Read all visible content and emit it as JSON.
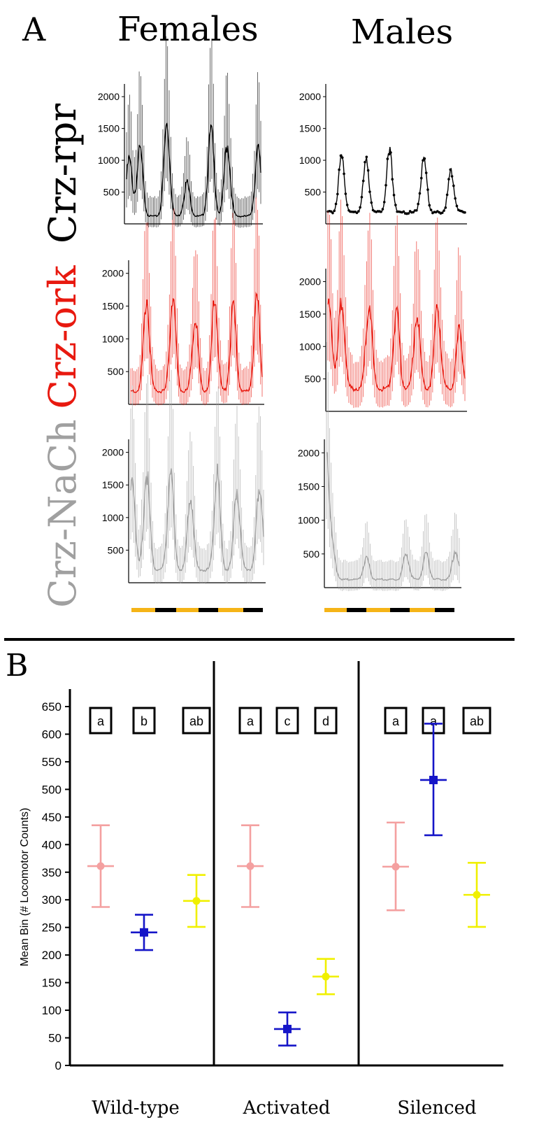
{
  "panel_a": {
    "label": "A",
    "columns": [
      "Females",
      "Males"
    ],
    "rows": [
      {
        "label": "Crz-rpr",
        "color": "#000000"
      },
      {
        "label": "Crz-ork",
        "color": "#e8190f"
      },
      {
        "label": "Crz-NaCh",
        "color": "#a0a0a0"
      }
    ]
  },
  "panel_b": {
    "label": "B"
  },
  "chart_data": [
    {
      "type": "line",
      "panel": "A",
      "row": "Crz-rpr",
      "column": "Females",
      "color": "#000000",
      "error_bars": true,
      "y_ticks": [
        "2000",
        "1500",
        "1000",
        "500"
      ],
      "ylim": [
        0,
        2200
      ],
      "peaks": [
        {
          "day_position": 0.02,
          "height": 1000
        },
        {
          "day_position": 0.1,
          "height": 1150
        },
        {
          "day_position": 0.3,
          "height": 1550
        },
        {
          "day_position": 0.45,
          "height": 650
        },
        {
          "day_position": 0.63,
          "height": 1450
        },
        {
          "day_position": 0.75,
          "height": 1250
        },
        {
          "day_position": 0.98,
          "height": 1150
        }
      ],
      "baseline": 120
    },
    {
      "type": "line",
      "panel": "A",
      "row": "Crz-rpr",
      "column": "Males",
      "color": "#000000",
      "error_bars": false,
      "y_ticks": [
        "2000",
        "1500",
        "1000",
        "500"
      ],
      "ylim": [
        0,
        2200
      ],
      "peaks": [
        {
          "day_position": 0.1,
          "height": 1000
        },
        {
          "day_position": 0.28,
          "height": 950
        },
        {
          "day_position": 0.45,
          "height": 1100
        },
        {
          "day_position": 0.7,
          "height": 950
        },
        {
          "day_position": 0.9,
          "height": 800
        }
      ],
      "baseline": 180
    },
    {
      "type": "line",
      "panel": "A",
      "row": "Crz-ork",
      "column": "Females",
      "color": "#e8190f",
      "error_bars": true,
      "y_ticks": [
        "2000",
        "1500",
        "1000",
        "500"
      ],
      "ylim": [
        0,
        2200
      ],
      "peaks": [
        {
          "day_position": 0.12,
          "height": 1650
        },
        {
          "day_position": 0.32,
          "height": 1650
        },
        {
          "day_position": 0.49,
          "height": 1350
        },
        {
          "day_position": 0.64,
          "height": 1600
        },
        {
          "day_position": 0.78,
          "height": 1450
        },
        {
          "day_position": 0.96,
          "height": 1600
        }
      ],
      "baseline": 200
    },
    {
      "type": "line",
      "panel": "A",
      "row": "Crz-ork",
      "column": "Males",
      "color": "#e8190f",
      "error_bars": true,
      "y_ticks": [
        "2000",
        "1500",
        "1000",
        "500"
      ],
      "ylim": [
        0,
        2200
      ],
      "peaks": [
        {
          "day_position": 0.01,
          "height": 1650
        },
        {
          "day_position": 0.1,
          "height": 1700
        },
        {
          "day_position": 0.3,
          "height": 1700
        },
        {
          "day_position": 0.5,
          "height": 1550
        },
        {
          "day_position": 0.65,
          "height": 1550
        },
        {
          "day_position": 0.8,
          "height": 1600
        },
        {
          "day_position": 0.96,
          "height": 1250
        }
      ],
      "baseline": 350
    },
    {
      "type": "line",
      "panel": "A",
      "row": "Crz-NaCh",
      "column": "Females",
      "color": "#a0a0a0",
      "error_bars": true,
      "y_ticks": [
        "2000",
        "1500",
        "1000",
        "500"
      ],
      "ylim": [
        0,
        2200
      ],
      "peaks": [
        {
          "day_position": 0.01,
          "height": 1650
        },
        {
          "day_position": 0.12,
          "height": 1700
        },
        {
          "day_position": 0.3,
          "height": 1750
        },
        {
          "day_position": 0.45,
          "height": 1350
        },
        {
          "day_position": 0.65,
          "height": 1700
        },
        {
          "day_position": 0.8,
          "height": 1450
        },
        {
          "day_position": 0.97,
          "height": 1550
        }
      ],
      "baseline": 200
    },
    {
      "type": "line",
      "panel": "A",
      "row": "Crz-NaCh",
      "column": "Males",
      "color": "#a0a0a0",
      "error_bars": true,
      "y_ticks": [
        "2000",
        "1500",
        "1000",
        "500"
      ],
      "ylim": [
        0,
        2200
      ],
      "peaks": [
        {
          "day_position": 0.0,
          "height": 2100
        },
        {
          "day_position": 0.05,
          "height": 450
        },
        {
          "day_position": 0.3,
          "height": 450
        },
        {
          "day_position": 0.6,
          "height": 500
        },
        {
          "day_position": 0.75,
          "height": 500
        },
        {
          "day_position": 0.97,
          "height": 550
        }
      ],
      "baseline": 120
    },
    {
      "type": "scatter",
      "panel": "B",
      "ylabel": "Mean Bin (# Locomotor Counts)",
      "ylim": [
        0,
        650
      ],
      "y_ticks": [
        "0",
        "50",
        "100",
        "150",
        "200",
        "250",
        "300",
        "350",
        "400",
        "450",
        "500",
        "550",
        "600",
        "650"
      ],
      "groups": [
        {
          "label": "Wild-type",
          "points": [
            {
              "mean": 361,
              "lower": 287,
              "upper": 435,
              "color": "#f4a0a0",
              "marker": "circle",
              "letter": "a"
            },
            {
              "mean": 241,
              "lower": 209,
              "upper": 273,
              "color": "#1515c8",
              "marker": "square",
              "letter": "b"
            },
            {
              "mean": 298,
              "lower": 251,
              "upper": 345,
              "color": "#f0f000",
              "marker": "circle",
              "letter": "ab"
            }
          ]
        },
        {
          "label": "Activated",
          "points": [
            {
              "mean": 361,
              "lower": 287,
              "upper": 435,
              "color": "#f4a0a0",
              "marker": "circle",
              "letter": "a"
            },
            {
              "mean": 66,
              "lower": 36,
              "upper": 96,
              "color": "#1515c8",
              "marker": "square",
              "letter": "c"
            },
            {
              "mean": 161,
              "lower": 129,
              "upper": 193,
              "color": "#f0f000",
              "marker": "circle",
              "letter": "d"
            }
          ]
        },
        {
          "label": "Silenced",
          "points": [
            {
              "mean": 360,
              "lower": 281,
              "upper": 440,
              "color": "#f4a0a0",
              "marker": "circle",
              "letter": "a"
            },
            {
              "mean": 517,
              "lower": 417,
              "upper": 619,
              "color": "#1515c8",
              "marker": "square",
              "letter": "a"
            },
            {
              "mean": 309,
              "lower": 251,
              "upper": 367,
              "color": "#f0f000",
              "marker": "circle",
              "letter": "ab"
            }
          ]
        }
      ]
    }
  ]
}
